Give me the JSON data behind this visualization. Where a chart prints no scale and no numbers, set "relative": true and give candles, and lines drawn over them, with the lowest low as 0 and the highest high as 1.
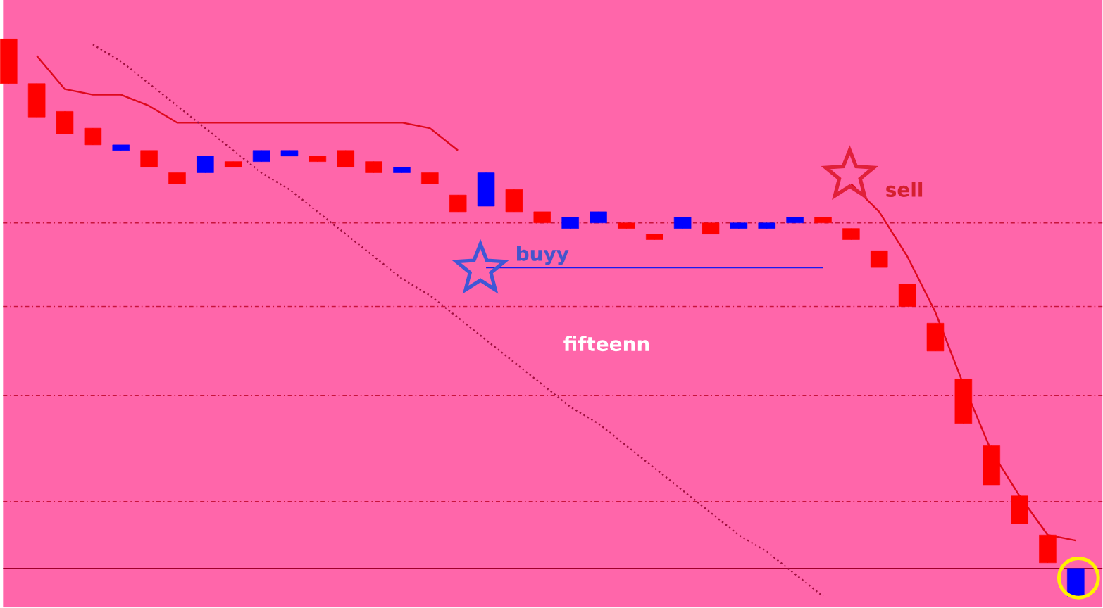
{
  "chart_data": {
    "type": "candlestick",
    "relative": true,
    "categories": [
      null,
      null,
      null,
      null,
      null,
      null,
      null,
      null,
      null,
      null,
      null,
      null,
      null,
      null,
      null,
      null,
      null,
      null,
      null,
      null,
      null,
      null,
      null,
      null,
      null,
      null,
      null,
      null,
      null,
      null,
      null,
      null,
      null,
      null,
      null,
      null,
      null,
      null,
      null
    ],
    "ohlc": [
      [
        1.0,
        1.0,
        0.92,
        0.92
      ],
      [
        0.92,
        0.92,
        0.86,
        0.86
      ],
      [
        0.87,
        0.87,
        0.83,
        0.83
      ],
      [
        0.84,
        0.84,
        0.81,
        0.81
      ],
      [
        0.8,
        0.81,
        0.8,
        0.81
      ],
      [
        0.8,
        0.8,
        0.77,
        0.77
      ],
      [
        0.76,
        0.76,
        0.74,
        0.74
      ],
      [
        0.76,
        0.79,
        0.76,
        0.79
      ],
      [
        0.78,
        0.78,
        0.77,
        0.77
      ],
      [
        0.78,
        0.8,
        0.78,
        0.8
      ],
      [
        0.79,
        0.8,
        0.79,
        0.8
      ],
      [
        0.79,
        0.79,
        0.78,
        0.78
      ],
      [
        0.8,
        0.8,
        0.77,
        0.77
      ],
      [
        0.78,
        0.78,
        0.76,
        0.76
      ],
      [
        0.76,
        0.77,
        0.76,
        0.77
      ],
      [
        0.76,
        0.76,
        0.74,
        0.74
      ],
      [
        0.72,
        0.72,
        0.69,
        0.69
      ],
      [
        0.7,
        0.76,
        0.7,
        0.76
      ],
      [
        0.73,
        0.73,
        0.69,
        0.69
      ],
      [
        0.69,
        0.69,
        0.67,
        0.67
      ],
      [
        0.66,
        0.68,
        0.66,
        0.68
      ],
      [
        0.67,
        0.69,
        0.67,
        0.69
      ],
      [
        0.67,
        0.67,
        0.66,
        0.66
      ],
      [
        0.65,
        0.65,
        0.64,
        0.64
      ],
      [
        0.66,
        0.68,
        0.66,
        0.68
      ],
      [
        0.67,
        0.67,
        0.65,
        0.65
      ],
      [
        0.66,
        0.67,
        0.66,
        0.67
      ],
      [
        0.66,
        0.67,
        0.66,
        0.67
      ],
      [
        0.67,
        0.68,
        0.67,
        0.68
      ],
      [
        0.68,
        0.68,
        0.67,
        0.67
      ],
      [
        0.66,
        0.66,
        0.64,
        0.64
      ],
      [
        0.62,
        0.62,
        0.59,
        0.59
      ],
      [
        0.56,
        0.56,
        0.52,
        0.52
      ],
      [
        0.49,
        0.49,
        0.44,
        0.44
      ],
      [
        0.39,
        0.39,
        0.31,
        0.31
      ],
      [
        0.27,
        0.27,
        0.2,
        0.2
      ],
      [
        0.18,
        0.18,
        0.13,
        0.13
      ],
      [
        0.11,
        0.11,
        0.06,
        0.06
      ],
      [
        0.0,
        0.05,
        0.0,
        0.05
      ]
    ],
    "colors": [
      "#ff0000",
      "#ff0000",
      "#ff0000",
      "#ff0000",
      "#0000ff",
      "#ff0000",
      "#ff0000",
      "#0000ff",
      "#ff0000",
      "#0000ff",
      "#0000ff",
      "#ff0000",
      "#ff0000",
      "#ff0000",
      "#0000ff",
      "#ff0000",
      "#ff0000",
      "#0000ff",
      "#ff0000",
      "#ff0000",
      "#0000ff",
      "#0000ff",
      "#ff0000",
      "#ff0000",
      "#0000ff",
      "#ff0000",
      "#0000ff",
      "#0000ff",
      "#0000ff",
      "#ff0000",
      "#ff0000",
      "#ff0000",
      "#ff0000",
      "#ff0000",
      "#ff0000",
      "#ff0000",
      "#ff0000",
      "#ff0000",
      "#0000ff"
    ],
    "series": [
      {
        "type": "line",
        "color": "#dd0a1e",
        "values": [
          null,
          0.97,
          0.91,
          0.9,
          0.9,
          0.88,
          0.85,
          0.85,
          0.85,
          0.85,
          0.85,
          0.85,
          0.85,
          0.85,
          0.85,
          0.84,
          0.8,
          null,
          null,
          null,
          null,
          null,
          null,
          null,
          null,
          null,
          null,
          null,
          null,
          null,
          0.74,
          0.69,
          0.61,
          0.51,
          0.38,
          0.26,
          0.18,
          0.11,
          0.1
        ]
      },
      {
        "type": "line",
        "color": "#1a1aee",
        "values": [
          null,
          null,
          null,
          null,
          null,
          null,
          null,
          null,
          null,
          null,
          null,
          null,
          null,
          null,
          null,
          null,
          null,
          0.59,
          0.59,
          0.59,
          0.59,
          0.59,
          0.59,
          0.59,
          0.59,
          0.59,
          0.59,
          0.59,
          0.59,
          0.59,
          null,
          null,
          null,
          null,
          null,
          null,
          null,
          null,
          null
        ]
      },
      {
        "type": "line",
        "color": "#a01040",
        "line_style": "dotted",
        "values": [
          null,
          null,
          null,
          0.99,
          0.96,
          0.92,
          0.88,
          0.84,
          0.8,
          0.76,
          0.73,
          0.69,
          0.65,
          0.61,
          0.57,
          0.54,
          0.5,
          0.46,
          0.42,
          0.38,
          0.34,
          0.31,
          0.27,
          0.23,
          0.19,
          0.15,
          0.11,
          0.08,
          0.04,
          0.0,
          null,
          null,
          null,
          null,
          null,
          null,
          null,
          null,
          null
        ]
      }
    ],
    "ref_lines": [
      {
        "axis": "y",
        "value": 0.67,
        "line_style": "dashed",
        "color": "#c8143c"
      },
      {
        "axis": "y",
        "value": 0.52,
        "line_style": "dashed",
        "color": "#c8143c"
      },
      {
        "axis": "y",
        "value": 0.36,
        "line_style": "dashed",
        "color": "#c8143c"
      },
      {
        "axis": "y",
        "value": 0.17,
        "line_style": "dashed",
        "color": "#c8143c"
      },
      {
        "axis": "y",
        "value": 0.05,
        "line_style": "solid",
        "color": "#a0002a"
      }
    ],
    "annotations": [
      "buyy",
      "sell",
      "fifteenn"
    ]
  }
}
